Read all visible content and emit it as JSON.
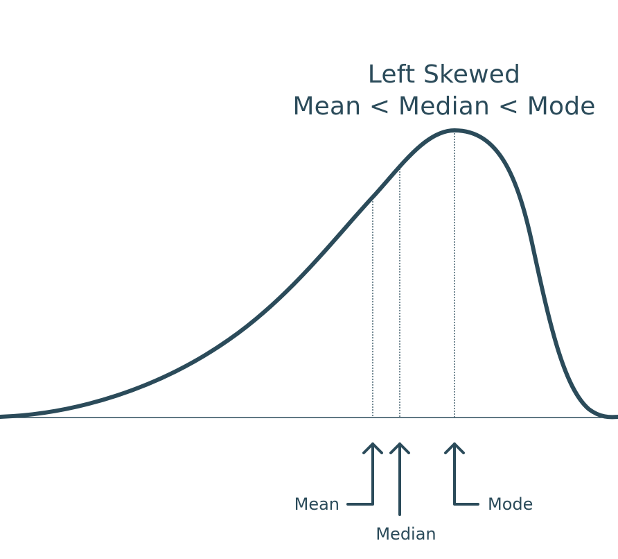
{
  "diagram": {
    "title_line1": "Left Skewed",
    "title_line2": "Mean < Median < Mode",
    "markers": {
      "mean": "Mean",
      "median": "Median",
      "mode": "Mode"
    },
    "colors": {
      "curve": "#2b4b5a",
      "text": "#2b4b5a",
      "baseline": "#2b4b5a",
      "background": "#ffffff"
    }
  }
}
